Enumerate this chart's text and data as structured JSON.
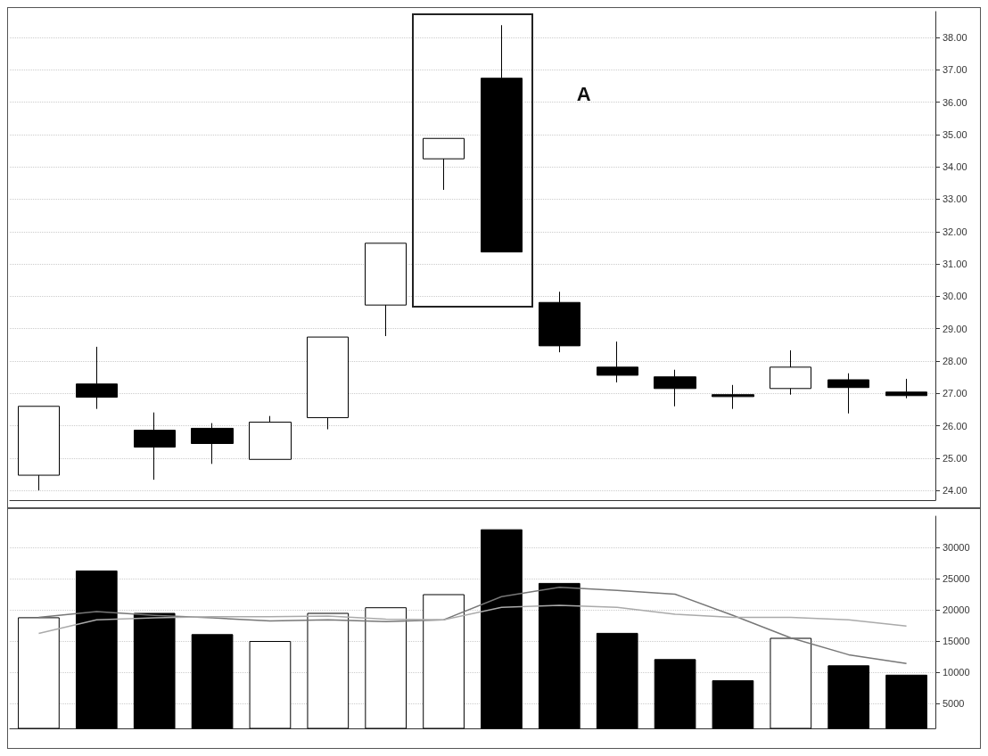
{
  "chart_data": [
    {
      "type": "candlestick",
      "categories": [
        null,
        null,
        null,
        null,
        null,
        null,
        null,
        null,
        null,
        null,
        null,
        null,
        null,
        null,
        null,
        null
      ],
      "ohlc": [
        [
          24.47,
          26.6,
          24.0,
          26.6
        ],
        [
          27.29,
          28.44,
          26.52,
          26.88
        ],
        [
          25.86,
          26.41,
          24.33,
          25.34
        ],
        [
          25.92,
          26.08,
          24.82,
          25.45
        ],
        [
          24.96,
          26.3,
          24.96,
          26.11
        ],
        [
          26.25,
          28.74,
          25.89,
          28.74
        ],
        [
          29.73,
          31.64,
          28.77,
          31.64
        ],
        [
          34.25,
          34.88,
          33.29,
          34.88
        ],
        [
          36.74,
          38.38,
          31.37,
          31.37
        ],
        [
          29.81,
          30.14,
          28.27,
          28.47
        ],
        [
          27.81,
          28.6,
          27.34,
          27.56
        ],
        [
          27.51,
          27.73,
          26.6,
          27.15
        ],
        [
          26.96,
          27.26,
          26.52,
          26.9
        ],
        [
          27.15,
          28.33,
          26.96,
          27.81
        ],
        [
          27.42,
          27.62,
          26.38,
          27.18
        ],
        [
          27.04,
          27.45,
          26.85,
          26.93
        ]
      ],
      "colors": [
        "#ffffff",
        "#000000",
        "#000000",
        "#000000",
        "#ffffff",
        "#ffffff",
        "#ffffff",
        "#ffffff",
        "#000000",
        "#000000",
        "#000000",
        "#000000",
        "#000000",
        "#ffffff",
        "#000000",
        "#000000"
      ],
      "ylim": [
        23.7,
        38.8
      ],
      "yticks": [
        {
          "value": 24,
          "label": "24.00"
        },
        {
          "value": 25,
          "label": "25.00"
        },
        {
          "value": 26,
          "label": "26.00"
        },
        {
          "value": 27,
          "label": "27.00"
        },
        {
          "value": 28,
          "label": "28.00"
        },
        {
          "value": 29,
          "label": "29.00"
        },
        {
          "value": 30,
          "label": "30.00"
        },
        {
          "value": 31,
          "label": "31.00"
        },
        {
          "value": 32,
          "label": "32.00"
        },
        {
          "value": 33,
          "label": "33.00"
        },
        {
          "value": 34,
          "label": "34.00"
        },
        {
          "value": 35,
          "label": "35.00"
        },
        {
          "value": 36,
          "label": "36.00"
        },
        {
          "value": 37,
          "label": "37.00"
        },
        {
          "value": 38,
          "label": "38.00"
        }
      ],
      "grid": "y",
      "tick_labels": "y",
      "annotations": [
        "A"
      ]
    },
    {
      "type": "bar",
      "categories": [
        null,
        null,
        null,
        null,
        null,
        null,
        null,
        null,
        null,
        null,
        null,
        null,
        null,
        null,
        null,
        null
      ],
      "series": [
        {
          "values": [
            18800,
            26300,
            19500,
            16100,
            15000,
            19500,
            20400,
            22500,
            32900,
            24300,
            16300,
            12100,
            8700,
            15500,
            11100,
            9600
          ],
          "colors": [
            "#ffffff",
            "#000000",
            "#000000",
            "#000000",
            "#ffffff",
            "#ffffff",
            "#ffffff",
            "#ffffff",
            "#000000",
            "#000000",
            "#000000",
            "#000000",
            "#000000",
            "#ffffff",
            "#000000",
            "#000000"
          ]
        },
        {
          "type": "line",
          "color": "#777777",
          "values": [
            18800,
            19700,
            19100,
            18700,
            18200,
            18400,
            18100,
            18400,
            22100,
            23600,
            23100,
            22500,
            19100,
            15500,
            12800,
            11400
          ]
        },
        {
          "type": "line",
          "color": "#aaaaaa",
          "values": [
            16200,
            18400,
            18700,
            18900,
            18900,
            19000,
            18500,
            18400,
            20400,
            20700,
            20400,
            19300,
            18800,
            18800,
            18400,
            17400
          ]
        }
      ],
      "ylim": [
        1000,
        35000
      ],
      "yticks": [
        5000,
        10000,
        15000,
        20000,
        25000,
        30000
      ],
      "grid": "y",
      "tick_labels": "y"
    }
  ]
}
